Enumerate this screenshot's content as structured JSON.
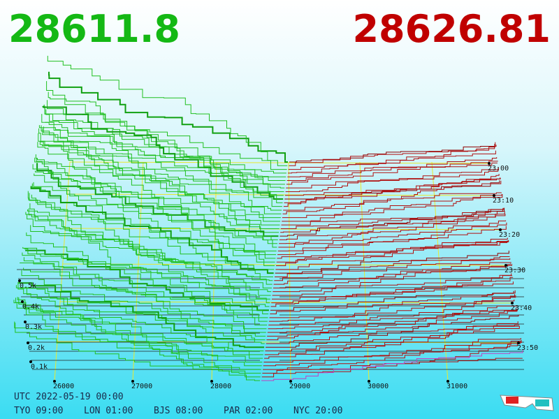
{
  "header": {
    "bid": "28611.8",
    "ask": "28626.81"
  },
  "depth_axis": {
    "labels": [
      "0.5k",
      "0.4k",
      "0.3k",
      "0.2k",
      "0.1k"
    ]
  },
  "time_axis": {
    "labels": [
      "23:00",
      "23:10",
      "23:20",
      "23:30",
      "23:40",
      "23:50"
    ]
  },
  "price_axis": {
    "labels": [
      "26000",
      "27000",
      "28000",
      "29000",
      "30000",
      "31000"
    ]
  },
  "footer": {
    "utc": "UTC 2022-05-19 00:00",
    "zones": [
      "TYO 09:00",
      "LON 01:00",
      "BJS 08:00",
      "PAR 02:00",
      "NYC 20:00"
    ]
  }
}
